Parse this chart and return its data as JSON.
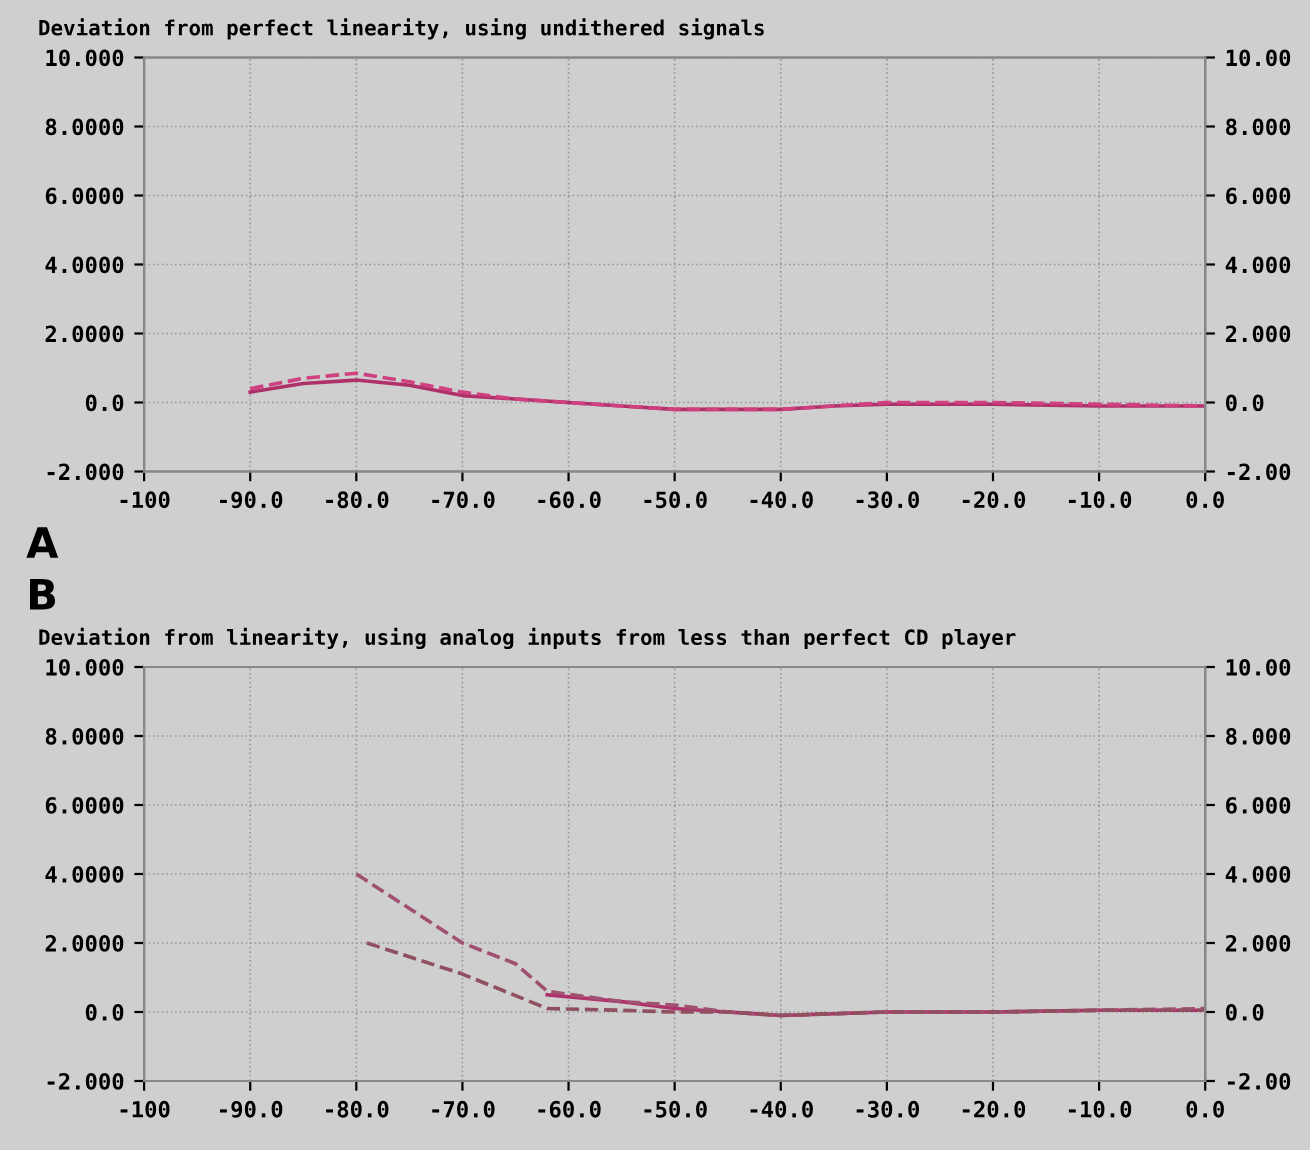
{
  "chart_data": [
    {
      "type": "line",
      "title": "Deviation from perfect linearity, using undithered signals",
      "annotations": [
        "A"
      ],
      "grid": true,
      "xlim": [
        -100,
        0
      ],
      "xticks": [
        {
          "value": -100,
          "label": "-100"
        },
        {
          "value": -90,
          "label": "-90.0"
        },
        {
          "value": -80,
          "label": "-80.0"
        },
        {
          "value": -70,
          "label": "-70.0"
        },
        {
          "value": -60,
          "label": "-60.0"
        },
        {
          "value": -50,
          "label": "-50.0"
        },
        {
          "value": -40,
          "label": "-40.0"
        },
        {
          "value": -30,
          "label": "-30.0"
        },
        {
          "value": -20,
          "label": "-20.0"
        },
        {
          "value": -10,
          "label": "-10.0"
        },
        {
          "value": 0,
          "label": "0.0"
        }
      ],
      "ylim": [
        -2,
        10
      ],
      "yticks": [
        {
          "value": -2,
          "label": "-2.000"
        },
        {
          "value": 0,
          "label": "0.0"
        },
        {
          "value": 2,
          "label": "2.0000"
        },
        {
          "value": 4,
          "label": "4.0000"
        },
        {
          "value": 6,
          "label": "6.0000"
        },
        {
          "value": 8,
          "label": "8.0000"
        },
        {
          "value": 10,
          "label": "10.000"
        }
      ],
      "y2lim": [
        -2,
        10
      ],
      "y2ticks": [
        {
          "value": -2,
          "label": "-2.00"
        },
        {
          "value": 0,
          "label": "0.0"
        },
        {
          "value": 2,
          "label": "2.000"
        },
        {
          "value": 4,
          "label": "4.000"
        },
        {
          "value": 6,
          "label": "6.000"
        },
        {
          "value": 8,
          "label": "8.000"
        },
        {
          "value": 10,
          "label": "10.00"
        }
      ],
      "series": [
        {
          "color": "#b0306a",
          "line_style": "solid",
          "x": [
            -90,
            -85,
            -80,
            -75,
            -70,
            -65,
            -60,
            -55,
            -50,
            -45,
            -40,
            -35,
            -30,
            -20,
            -10,
            0
          ],
          "values": [
            0.3,
            0.55,
            0.65,
            0.5,
            0.2,
            0.1,
            0.0,
            -0.1,
            -0.2,
            -0.2,
            -0.2,
            -0.1,
            -0.05,
            -0.05,
            -0.1,
            -0.1
          ]
        },
        {
          "color": "#d04080",
          "line_style": "dashed",
          "x": [
            -90,
            -85,
            -80,
            -75,
            -70,
            -65,
            -60,
            -55,
            -50,
            -45,
            -40,
            -35,
            -30,
            -20,
            -10,
            0
          ],
          "values": [
            0.4,
            0.7,
            0.85,
            0.6,
            0.3,
            0.1,
            0.0,
            -0.1,
            -0.2,
            -0.2,
            -0.2,
            -0.1,
            0.0,
            0.0,
            -0.05,
            -0.1
          ]
        }
      ]
    },
    {
      "type": "line",
      "title": "Deviation from linearity, using analog inputs from less than perfect CD player",
      "annotations": [
        "B"
      ],
      "grid": true,
      "xlim": [
        -100,
        0
      ],
      "xticks": [
        {
          "value": -100,
          "label": "-100"
        },
        {
          "value": -90,
          "label": "-90.0"
        },
        {
          "value": -80,
          "label": "-80.0"
        },
        {
          "value": -70,
          "label": "-70.0"
        },
        {
          "value": -60,
          "label": "-60.0"
        },
        {
          "value": -50,
          "label": "-50.0"
        },
        {
          "value": -40,
          "label": "-40.0"
        },
        {
          "value": -30,
          "label": "-30.0"
        },
        {
          "value": -20,
          "label": "-20.0"
        },
        {
          "value": -10,
          "label": "-10.0"
        },
        {
          "value": 0,
          "label": "0.0"
        }
      ],
      "ylim": [
        -2,
        10
      ],
      "yticks": [
        {
          "value": -2,
          "label": "-2.000"
        },
        {
          "value": 0,
          "label": "0.0"
        },
        {
          "value": 2,
          "label": "2.0000"
        },
        {
          "value": 4,
          "label": "4.0000"
        },
        {
          "value": 6,
          "label": "6.0000"
        },
        {
          "value": 8,
          "label": "8.0000"
        },
        {
          "value": 10,
          "label": "10.000"
        }
      ],
      "y2lim": [
        -2,
        10
      ],
      "y2ticks": [
        {
          "value": -2,
          "label": "-2.00"
        },
        {
          "value": 0,
          "label": "0.0"
        },
        {
          "value": 2,
          "label": "2.000"
        },
        {
          "value": 4,
          "label": "4.000"
        },
        {
          "value": 6,
          "label": "6.000"
        },
        {
          "value": 8,
          "label": "8.000"
        },
        {
          "value": 10,
          "label": "10.00"
        }
      ],
      "series": [
        {
          "color": "#b0306a",
          "line_style": "solid",
          "x": [
            -62,
            -55,
            -50,
            -45,
            -40,
            -30,
            -20,
            -10,
            0
          ],
          "values": [
            0.5,
            0.3,
            0.1,
            0.0,
            -0.1,
            0.0,
            0.0,
            0.05,
            0.05
          ]
        },
        {
          "color": "#a05070",
          "line_style": "dashed",
          "x": [
            -80,
            -75,
            -70,
            -65,
            -62,
            -55,
            -50,
            -45,
            -40,
            -30,
            -20,
            -10,
            0
          ],
          "values": [
            4.0,
            3.0,
            2.0,
            1.4,
            0.6,
            0.3,
            0.2,
            0.0,
            -0.1,
            0.0,
            0.0,
            0.05,
            0.1
          ]
        },
        {
          "color": "#905060",
          "line_style": "dashed",
          "x": [
            -79,
            -70,
            -62,
            -55,
            -50,
            -45,
            -40,
            -30,
            -20,
            -10,
            0
          ],
          "values": [
            2.0,
            1.1,
            0.1,
            0.05,
            0.0,
            0.0,
            -0.1,
            0.0,
            0.0,
            0.05,
            0.05
          ]
        }
      ]
    }
  ]
}
